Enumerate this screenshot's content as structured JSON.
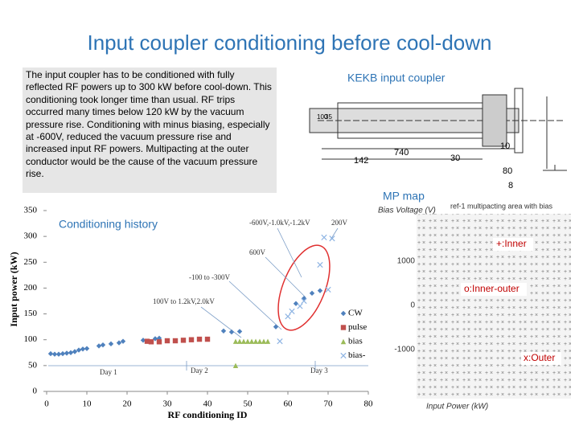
{
  "title": "Input coupler conditioning before cool-down",
  "text": "The input coupler has to be conditioned with fully reflected RF powers up to 300 kW before cool-down. This conditioning took longer time than usual. RF trips occurred many times below 120 kW by the vacuum pressure rise. Conditioning with minus biasing, especially at -600V, reduced the vacuum pressure rise and increased input RF powers. Multipacting at the outer conductor would be the cause of the vacuum pressure rise.",
  "coupler": {
    "label": "KEKB input coupler",
    "dims": [
      "740",
      "142",
      "30",
      "10",
      "80",
      "8",
      "100",
      "35"
    ]
  },
  "mp_map": {
    "label": "MP map",
    "title": "ref-1 multipacting area with bias",
    "ylabel": "Bias Voltage (V)",
    "xlabel": "Input Power (kW)",
    "yticks": [
      "1000",
      "0",
      "-1000"
    ],
    "legend": [
      "+:Inner",
      "o:Inner-outer",
      "x:Outer"
    ]
  },
  "chart_data": {
    "type": "scatter",
    "title": "Conditioning history",
    "xlabel": "RF conditioning ID",
    "ylabel": "Input power (kW)",
    "xlim": [
      0,
      80
    ],
    "xticks": [
      0,
      10,
      20,
      30,
      40,
      50,
      60,
      70,
      80
    ],
    "ylim": [
      0,
      350
    ],
    "yticks": [
      0,
      50,
      100,
      150,
      200,
      250,
      300,
      350
    ],
    "series": [
      {
        "name": "CW",
        "color": "#4f81bd",
        "marker": "diamond",
        "x": [
          1,
          2,
          3,
          4,
          5,
          6,
          7,
          8,
          9,
          10,
          13,
          14,
          16,
          18,
          19,
          24,
          27,
          28,
          44,
          46,
          48,
          57,
          62,
          64,
          66,
          68
        ],
        "values": [
          73,
          72,
          72,
          73,
          74,
          75,
          77,
          80,
          82,
          83,
          88,
          90,
          92,
          94,
          97,
          99,
          102,
          103,
          117,
          115,
          116,
          125,
          170,
          180,
          190,
          195
        ]
      },
      {
        "name": "pulse",
        "color": "#c0504d",
        "marker": "square",
        "x": [
          25,
          26,
          28,
          30,
          32,
          34,
          36,
          38,
          40
        ],
        "values": [
          97,
          96,
          96,
          98,
          98,
          99,
          100,
          101,
          101
        ]
      },
      {
        "name": "bias",
        "color": "#9bbb59",
        "marker": "triangle",
        "x": [
          47,
          48,
          49,
          50,
          51,
          52,
          53,
          54,
          55,
          47
        ],
        "values": [
          97,
          97,
          97,
          97,
          97,
          97,
          97,
          97,
          97,
          50
        ]
      },
      {
        "name": "bias-",
        "color": "#8eb4e3",
        "marker": "x",
        "x": [
          58,
          60,
          61,
          63,
          64,
          68,
          70,
          69,
          71
        ],
        "values": [
          97,
          145,
          155,
          165,
          175,
          245,
          197,
          298,
          296
        ]
      }
    ],
    "annotations": [
      "-600V,-1.0kV,-1.2kV",
      "200V",
      "600V",
      "-100 to -300V",
      "100V to 1.2kV,2.0kV",
      "Day 1",
      "Day 2",
      "Day 3"
    ]
  }
}
